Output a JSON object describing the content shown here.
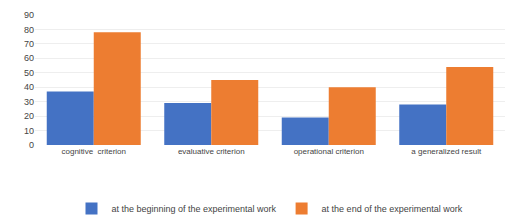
{
  "chart_data": {
    "type": "bar",
    "categories": [
      "cognitive  criterion",
      "evaluative criterion",
      "operational criterion",
      "a generalized result"
    ],
    "series": [
      {
        "name": "at the beginning of the experimental work",
        "color": "#4472c4",
        "values": [
          37,
          29,
          19,
          28
        ]
      },
      {
        "name": "at the end of the experimental work",
        "color": "#ed7d31",
        "values": [
          78,
          45,
          40,
          54
        ]
      }
    ],
    "ylim": [
      0,
      90
    ],
    "yticks": [
      0,
      10,
      20,
      30,
      40,
      50,
      60,
      70,
      80,
      90
    ],
    "grid": true,
    "legend": "bottom"
  }
}
